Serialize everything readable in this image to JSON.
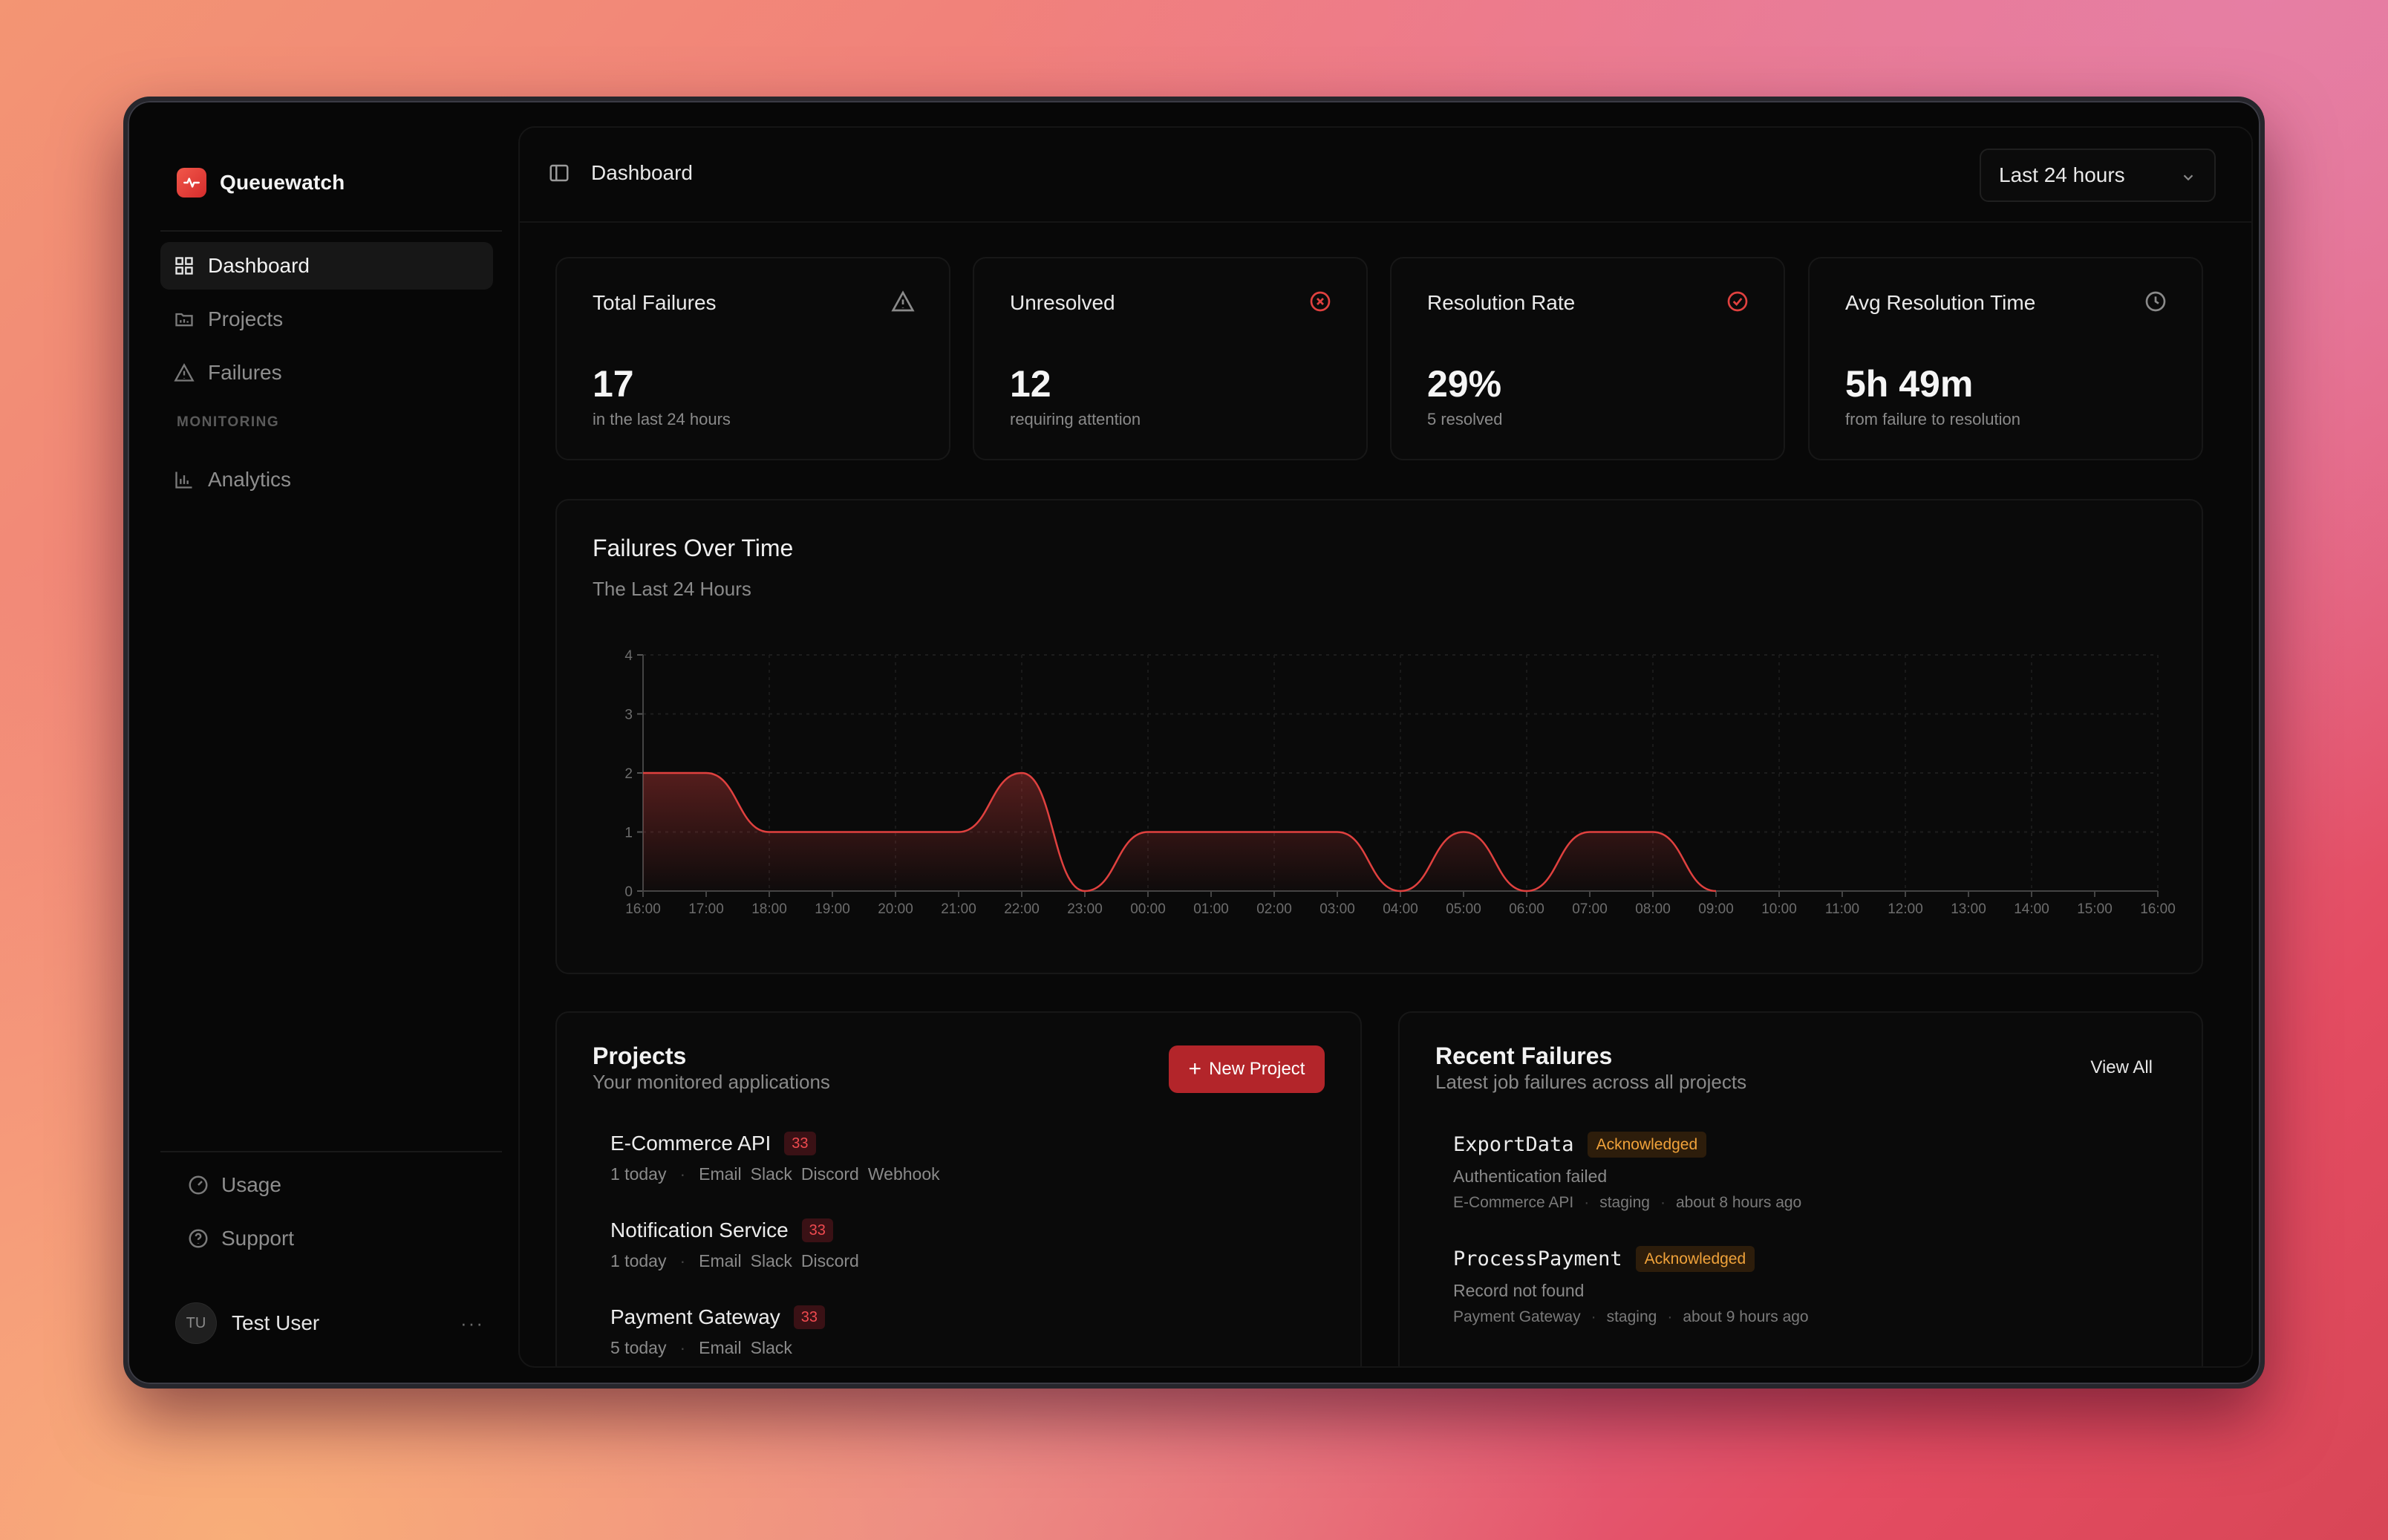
{
  "app": {
    "name": "Queuewatch"
  },
  "sidebar": {
    "items": [
      {
        "label": "Dashboard",
        "icon": "grid-icon"
      },
      {
        "label": "Projects",
        "icon": "folder-icon"
      },
      {
        "label": "Failures",
        "icon": "warning-icon"
      }
    ],
    "section_label": "MONITORING",
    "monitoring_items": [
      {
        "label": "Analytics",
        "icon": "bar-chart-icon"
      }
    ],
    "footer_items": [
      {
        "label": "Usage",
        "icon": "gauge-icon"
      },
      {
        "label": "Support",
        "icon": "help-icon"
      }
    ],
    "user": {
      "initials": "TU",
      "name": "Test User",
      "more": "···"
    }
  },
  "header": {
    "breadcrumb": "Dashboard",
    "range_select": "Last 24 hours"
  },
  "stats": [
    {
      "title": "Total Failures",
      "value": "17",
      "sub": "in the last 24 hours",
      "icon": "warning-icon"
    },
    {
      "title": "Unresolved",
      "value": "12",
      "sub": "requiring attention",
      "icon": "x-circle-icon"
    },
    {
      "title": "Resolution Rate",
      "value": "29%",
      "sub": "5 resolved",
      "icon": "check-circle-icon"
    },
    {
      "title": "Avg Resolution Time",
      "value": "5h 49m",
      "sub": "from failure to resolution",
      "icon": "clock-icon"
    }
  ],
  "chart_data": {
    "type": "area",
    "title": "Failures Over Time",
    "subtitle": "The Last 24 Hours",
    "x": [
      "16:00",
      "17:00",
      "18:00",
      "19:00",
      "20:00",
      "21:00",
      "22:00",
      "23:00",
      "00:00",
      "01:00",
      "02:00",
      "03:00",
      "04:00",
      "05:00",
      "06:00",
      "07:00",
      "08:00",
      "09:00",
      "10:00",
      "11:00",
      "12:00",
      "13:00",
      "14:00",
      "15:00",
      "16:00"
    ],
    "series": [
      {
        "values": [
          2,
          2,
          1,
          1,
          1,
          1,
          2,
          0,
          1,
          1,
          1,
          1,
          0,
          1,
          0,
          1,
          1,
          0,
          null,
          null,
          null,
          null,
          null,
          null,
          null
        ]
      }
    ],
    "ylim": [
      0,
      4
    ],
    "yticks": [
      0,
      1,
      2,
      3,
      4
    ],
    "grid": true,
    "color": "#e0413f"
  },
  "projects": {
    "title": "Projects",
    "subtitle": "Your monitored applications",
    "new_button": "New Project",
    "items": [
      {
        "name": "E-Commerce API",
        "badge": "33",
        "today": "1 today",
        "channels": [
          "Email",
          "Slack",
          "Discord",
          "Webhook"
        ]
      },
      {
        "name": "Notification Service",
        "badge": "33",
        "today": "1 today",
        "channels": [
          "Email",
          "Slack",
          "Discord"
        ]
      },
      {
        "name": "Payment Gateway",
        "badge": "33",
        "today": "5 today",
        "channels": [
          "Email",
          "Slack"
        ]
      }
    ]
  },
  "recent_failures": {
    "title": "Recent Failures",
    "subtitle": "Latest job failures across all projects",
    "view_all": "View All",
    "items": [
      {
        "job": "ExportData",
        "status": "Acknowledged",
        "message": "Authentication failed",
        "project": "E-Commerce API",
        "env": "staging",
        "time": "about 8 hours ago"
      },
      {
        "job": "ProcessPayment",
        "status": "Acknowledged",
        "message": "Record not found",
        "project": "Payment Gateway",
        "env": "staging",
        "time": "about 9 hours ago"
      }
    ]
  },
  "colors": {
    "accent": "#d52c2c",
    "amber": "#f0a23a",
    "background": "#070707"
  }
}
